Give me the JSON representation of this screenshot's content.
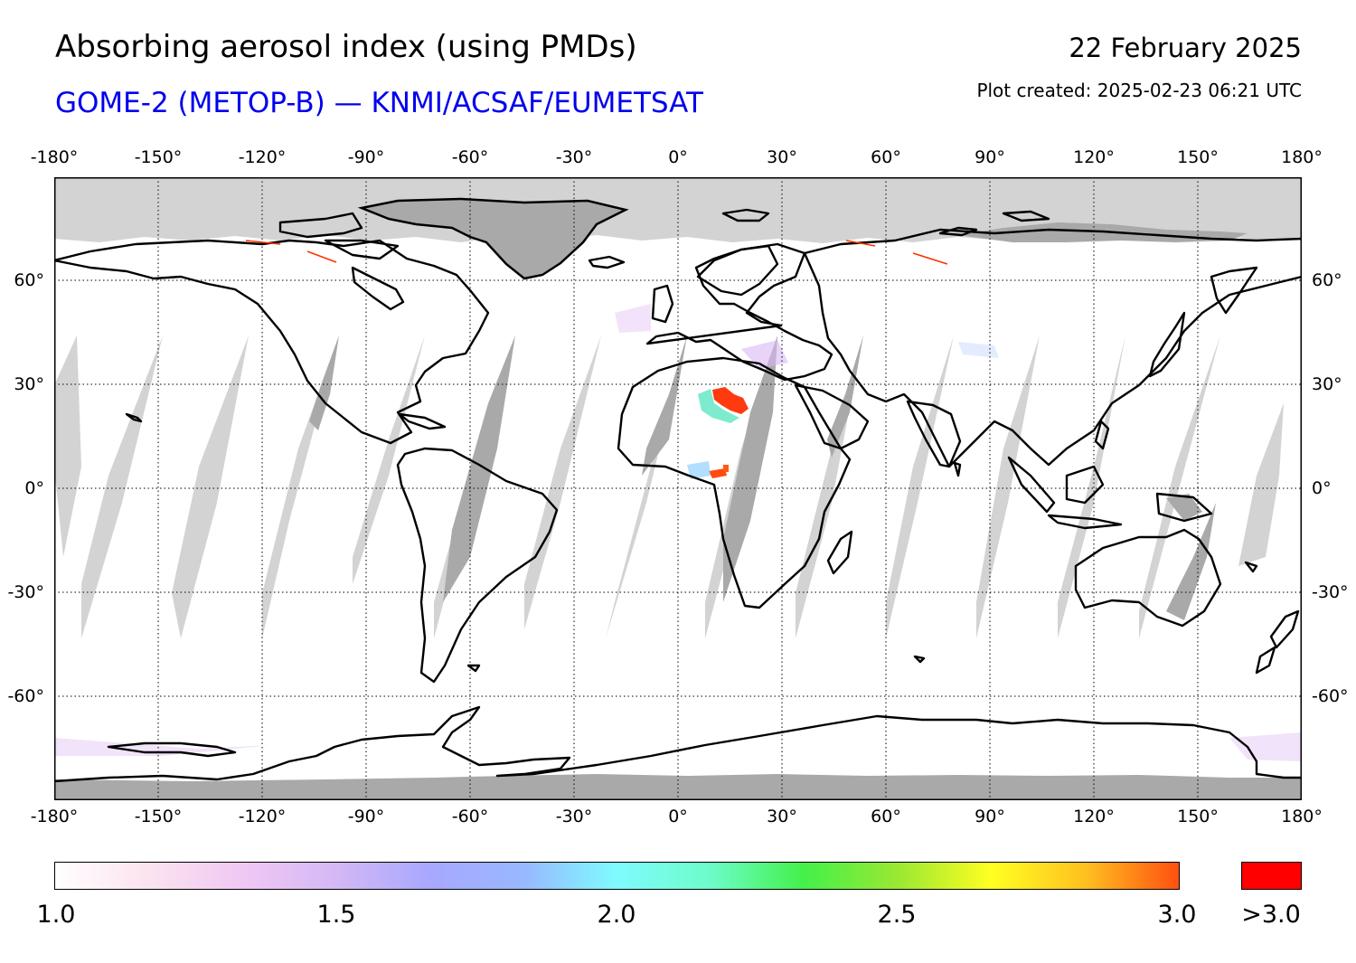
{
  "header": {
    "title": "Absorbing aerosol index (using PMDs)",
    "subtitle": "GOME-2 (METOP-B) — KNMI/ACSAF/EUMETSAT",
    "date": "22 February 2025",
    "created": "Plot created: 2025-02-23 06:21 UTC"
  },
  "map": {
    "lon_ticks": [
      "-180°",
      "-150°",
      "-120°",
      "-90°",
      "-60°",
      "-30°",
      "0°",
      "30°",
      "60°",
      "90°",
      "120°",
      "150°",
      "180°"
    ],
    "lat_ticks": [
      "60°",
      "30°",
      "0°",
      "-30°",
      "-60°"
    ],
    "lon_range": [
      -180,
      180
    ],
    "lat_range": [
      -90,
      90
    ],
    "grid": true,
    "colors": {
      "no_data": "#d3d3d3",
      "land_no_data": "#a9a9a9",
      "coastline": "#000000",
      "grid": "#000000"
    }
  },
  "colorbar": {
    "labels": [
      "1.0",
      "1.5",
      "2.0",
      "2.5",
      "3.0"
    ],
    "over_label": ">3.0",
    "range": [
      1.0,
      3.0
    ],
    "stops": [
      "#ffffff",
      "#fbe3ef",
      "#f0c8f4",
      "#d4b8f5",
      "#a8a8ff",
      "#98b8ff",
      "#7ffbff",
      "#6cfcc8",
      "#44f04a",
      "#9ae832",
      "#ffff22",
      "#ffc020",
      "#ff5010"
    ],
    "over_color": "#ff0000"
  }
}
